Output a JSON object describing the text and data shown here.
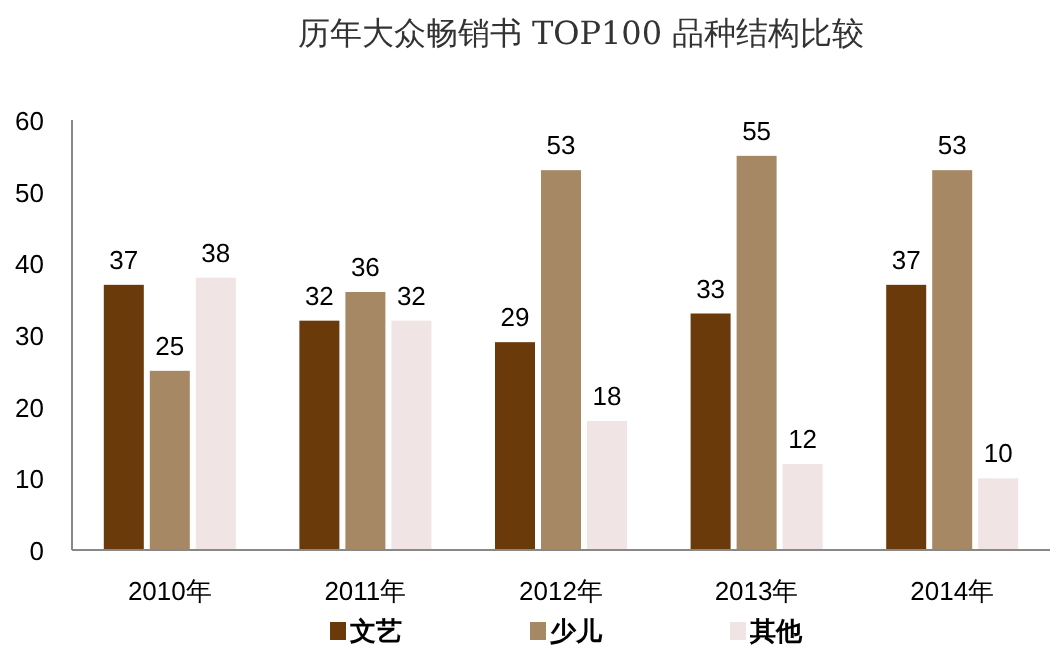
{
  "chart_data": {
    "type": "bar",
    "title": "历年大众畅销书 TOP100 品种结构比较",
    "categories": [
      "2010年",
      "2011年",
      "2012年",
      "2013年",
      "2014年"
    ],
    "series": [
      {
        "name": "文艺",
        "color": "#6b3a0b",
        "values": [
          37,
          32,
          29,
          33,
          37
        ]
      },
      {
        "name": "少儿",
        "color": "#a68964",
        "values": [
          25,
          36,
          53,
          55,
          53
        ]
      },
      {
        "name": "其他",
        "color": "#f0e4e4",
        "values": [
          38,
          32,
          18,
          12,
          10
        ]
      }
    ],
    "ylim": [
      0,
      60
    ],
    "yticks": [
      0,
      10,
      20,
      30,
      40,
      50,
      60
    ],
    "data_labels": true,
    "legend": "bottom",
    "grid": false
  }
}
